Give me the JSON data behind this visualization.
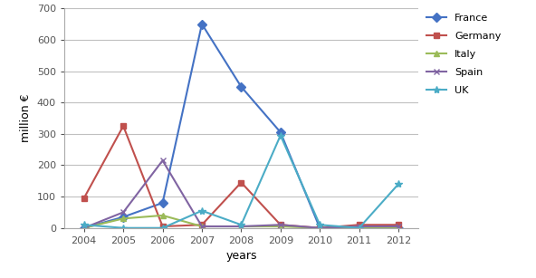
{
  "years": [
    2004,
    2005,
    2006,
    2007,
    2008,
    2009,
    2010,
    2011,
    2012
  ],
  "series": [
    {
      "name": "France",
      "values": [
        0,
        35,
        80,
        650,
        450,
        305,
        0,
        0,
        0
      ],
      "color": "#4472c4",
      "marker": "D",
      "markersize": 5
    },
    {
      "name": "Germany",
      "values": [
        95,
        325,
        5,
        10,
        145,
        10,
        0,
        10,
        10
      ],
      "color": "#c0504d",
      "marker": "s",
      "markersize": 5
    },
    {
      "name": "Italy",
      "values": [
        0,
        30,
        40,
        5,
        5,
        5,
        0,
        0,
        0
      ],
      "color": "#9bbb59",
      "marker": "^",
      "markersize": 5
    },
    {
      "name": "Spain",
      "values": [
        0,
        50,
        215,
        5,
        5,
        10,
        0,
        5,
        5
      ],
      "color": "#8064a2",
      "marker": "x",
      "markersize": 5
    },
    {
      "name": "UK",
      "values": [
        10,
        0,
        0,
        55,
        10,
        295,
        10,
        0,
        140
      ],
      "color": "#4bacc6",
      "marker": "*",
      "markersize": 6
    }
  ],
  "xlabel": "years",
  "ylabel": "million €",
  "ylim": [
    0,
    700
  ],
  "yticks": [
    0,
    100,
    200,
    300,
    400,
    500,
    600,
    700
  ],
  "xlim": [
    2003.5,
    2012.5
  ],
  "background_color": "#ffffff",
  "grid_color": "#c0c0c0",
  "linewidth": 1.5,
  "tick_fontsize": 8,
  "label_fontsize": 9,
  "legend_fontsize": 8
}
